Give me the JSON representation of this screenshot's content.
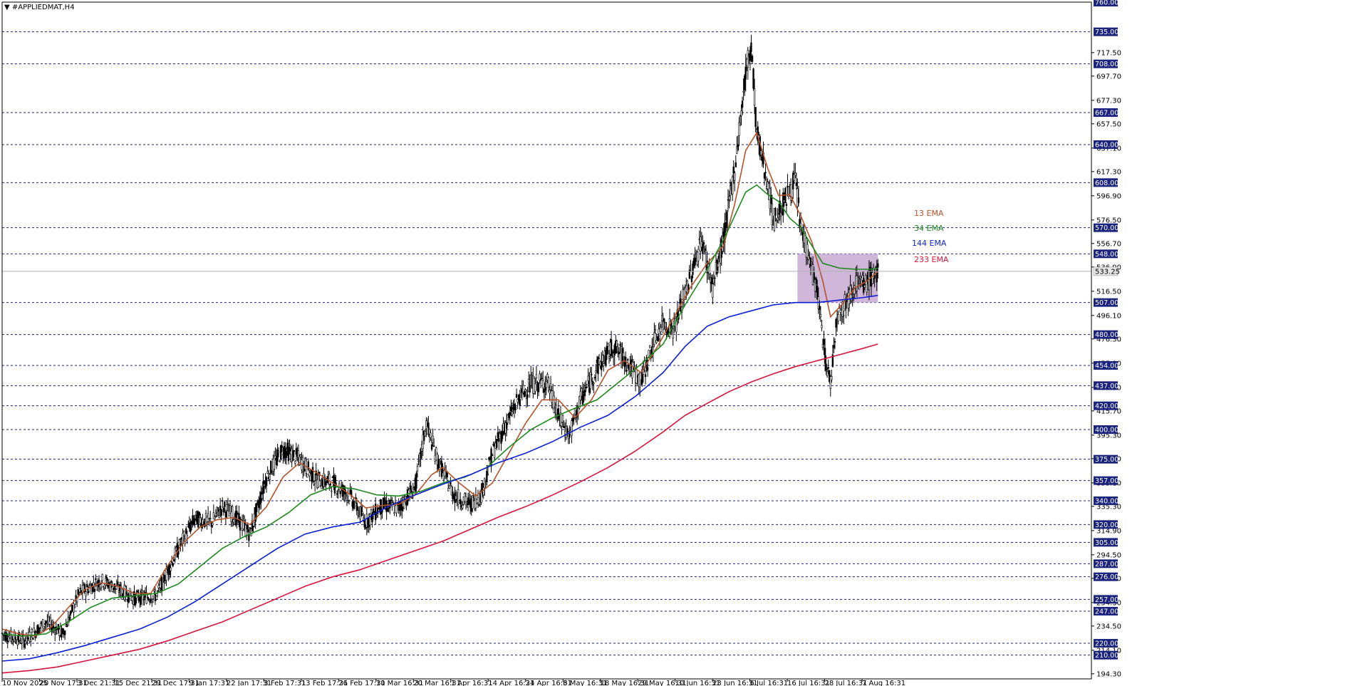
{
  "chart_data": {
    "type": "candlestick",
    "title": "▼ #APPLIEDMAT,H4",
    "symbol": "#APPLIEDMAT",
    "timeframe": "H4",
    "ylim": [
      190,
      760
    ],
    "y_ticks": [
      194.3,
      214.1,
      234.5,
      254.3,
      274.7,
      294.5,
      314.9,
      335.3,
      355.1,
      375.5,
      395.3,
      415.7,
      435.5,
      455.9,
      476.3,
      496.1,
      516.5,
      536.9,
      556.7,
      576.5,
      596.9,
      617.3,
      637.1,
      657.5,
      677.3,
      697.7,
      717.5
    ],
    "levels": [
      760.0,
      735.0,
      708.0,
      667.0,
      640.0,
      608.0,
      570.0,
      548.0,
      507.0,
      480.0,
      454.0,
      437.0,
      420.0,
      400.0,
      375.0,
      357.0,
      340.0,
      320.0,
      305.0,
      287.0,
      276.0,
      257.0,
      247.0,
      220.0,
      210.0
    ],
    "current_price": 533.25,
    "x_labels": [
      "10 Nov 2025",
      "20 Nov 17:31",
      "3 Dec 21:31",
      "15 Dec 21:31",
      "29 Dec 17:31",
      "9 Jan 17:31",
      "22 Jan 17:31",
      "3 Feb 17:31",
      "13 Feb 17:31",
      "26 Feb 17:31",
      "10 Mar 16:31",
      "20 Mar 16:31",
      "1 Apr 16:31",
      "14 Apr 16:31",
      "24 Apr 16:31",
      "6 May 16:31",
      "18 May 16:31",
      "29 May 16:31",
      "10 Jun 16:31",
      "23 Jun 16:31",
      "6 Jul 16:31",
      "16 Jul 16:31",
      "28 Jul 16:31",
      "7 Aug 16:31"
    ],
    "close_path": [
      [
        0,
        228
      ],
      [
        20,
        222
      ],
      [
        40,
        238
      ],
      [
        55,
        228
      ],
      [
        70,
        262
      ],
      [
        90,
        273
      ],
      [
        105,
        266
      ],
      [
        120,
        258
      ],
      [
        140,
        260
      ],
      [
        160,
        300
      ],
      [
        175,
        325
      ],
      [
        190,
        322
      ],
      [
        200,
        335
      ],
      [
        210,
        328
      ],
      [
        225,
        312
      ],
      [
        240,
        360
      ],
      [
        255,
        384
      ],
      [
        270,
        375
      ],
      [
        285,
        358
      ],
      [
        300,
        355
      ],
      [
        315,
        345
      ],
      [
        330,
        322
      ],
      [
        345,
        336
      ],
      [
        360,
        334
      ],
      [
        375,
        352
      ],
      [
        385,
        405
      ],
      [
        395,
        375
      ],
      [
        410,
        345
      ],
      [
        425,
        337
      ],
      [
        435,
        345
      ],
      [
        445,
        380
      ],
      [
        455,
        400
      ],
      [
        470,
        428
      ],
      [
        480,
        438
      ],
      [
        495,
        440
      ],
      [
        505,
        410
      ],
      [
        515,
        395
      ],
      [
        525,
        425
      ],
      [
        540,
        452
      ],
      [
        555,
        470
      ],
      [
        565,
        460
      ],
      [
        580,
        440
      ],
      [
        590,
        470
      ],
      [
        600,
        490
      ],
      [
        610,
        485
      ],
      [
        625,
        530
      ],
      [
        635,
        560
      ],
      [
        645,
        520
      ],
      [
        655,
        560
      ],
      [
        665,
        620
      ],
      [
        675,
        700
      ],
      [
        680,
        725
      ],
      [
        685,
        650
      ],
      [
        695,
        608
      ],
      [
        700,
        575
      ],
      [
        710,
        592
      ],
      [
        720,
        610
      ],
      [
        725,
        570
      ],
      [
        732,
        548
      ],
      [
        740,
        515
      ],
      [
        748,
        455
      ],
      [
        752,
        440
      ],
      [
        758,
        498
      ],
      [
        765,
        505
      ],
      [
        775,
        525
      ],
      [
        782,
        520
      ],
      [
        790,
        530
      ],
      [
        795,
        533
      ]
    ],
    "ema_series": [
      {
        "name": "13 EMA",
        "color": "#b5532a",
        "path": [
          [
            0,
            232
          ],
          [
            15,
            228
          ],
          [
            30,
            226
          ],
          [
            45,
            234
          ],
          [
            60,
            250
          ],
          [
            75,
            265
          ],
          [
            90,
            271
          ],
          [
            105,
            268
          ],
          [
            120,
            262
          ],
          [
            135,
            262
          ],
          [
            150,
            285
          ],
          [
            165,
            305
          ],
          [
            180,
            318
          ],
          [
            195,
            324
          ],
          [
            210,
            326
          ],
          [
            225,
            320
          ],
          [
            240,
            335
          ],
          [
            255,
            360
          ],
          [
            270,
            372
          ],
          [
            285,
            364
          ],
          [
            300,
            355
          ],
          [
            315,
            346
          ],
          [
            330,
            334
          ],
          [
            345,
            336
          ],
          [
            360,
            337
          ],
          [
            375,
            345
          ],
          [
            390,
            362
          ],
          [
            400,
            368
          ],
          [
            415,
            355
          ],
          [
            430,
            344
          ],
          [
            445,
            355
          ],
          [
            460,
            380
          ],
          [
            475,
            405
          ],
          [
            490,
            425
          ],
          [
            505,
            425
          ],
          [
            520,
            410
          ],
          [
            535,
            425
          ],
          [
            550,
            450
          ],
          [
            565,
            458
          ],
          [
            580,
            448
          ],
          [
            595,
            470
          ],
          [
            610,
            495
          ],
          [
            625,
            520
          ],
          [
            640,
            540
          ],
          [
            655,
            555
          ],
          [
            665,
            590
          ],
          [
            675,
            635
          ],
          [
            685,
            650
          ],
          [
            695,
            620
          ],
          [
            705,
            597
          ],
          [
            715,
            598
          ],
          [
            725,
            580
          ],
          [
            735,
            558
          ],
          [
            745,
            525
          ],
          [
            752,
            495
          ],
          [
            762,
            505
          ],
          [
            775,
            520
          ],
          [
            785,
            525
          ],
          [
            795,
            533
          ]
        ]
      },
      {
        "name": "34 EMA",
        "color": "#1e8a1e",
        "path": [
          [
            0,
            228
          ],
          [
            20,
            226
          ],
          [
            40,
            228
          ],
          [
            60,
            238
          ],
          [
            80,
            250
          ],
          [
            100,
            258
          ],
          [
            120,
            260
          ],
          [
            140,
            262
          ],
          [
            160,
            270
          ],
          [
            180,
            285
          ],
          [
            200,
            300
          ],
          [
            220,
            310
          ],
          [
            240,
            318
          ],
          [
            260,
            330
          ],
          [
            280,
            345
          ],
          [
            300,
            352
          ],
          [
            320,
            350
          ],
          [
            340,
            345
          ],
          [
            360,
            344
          ],
          [
            380,
            348
          ],
          [
            400,
            355
          ],
          [
            420,
            360
          ],
          [
            440,
            368
          ],
          [
            460,
            385
          ],
          [
            480,
            400
          ],
          [
            500,
            410
          ],
          [
            520,
            418
          ],
          [
            540,
            425
          ],
          [
            560,
            440
          ],
          [
            580,
            455
          ],
          [
            600,
            472
          ],
          [
            620,
            505
          ],
          [
            640,
            535
          ],
          [
            655,
            560
          ],
          [
            665,
            580
          ],
          [
            675,
            600
          ],
          [
            685,
            606
          ],
          [
            695,
            598
          ],
          [
            705,
            592
          ],
          [
            715,
            578
          ],
          [
            725,
            570
          ],
          [
            735,
            555
          ],
          [
            745,
            540
          ],
          [
            760,
            536
          ],
          [
            775,
            535
          ],
          [
            790,
            535
          ],
          [
            795,
            536
          ]
        ]
      },
      {
        "name": "144 EMA",
        "color": "#0a1fd4",
        "path": [
          [
            0,
            205
          ],
          [
            25,
            207
          ],
          [
            50,
            212
          ],
          [
            75,
            218
          ],
          [
            100,
            225
          ],
          [
            125,
            232
          ],
          [
            150,
            242
          ],
          [
            175,
            255
          ],
          [
            200,
            270
          ],
          [
            225,
            285
          ],
          [
            250,
            300
          ],
          [
            275,
            312
          ],
          [
            300,
            318
          ],
          [
            325,
            322
          ],
          [
            350,
            335
          ],
          [
            375,
            345
          ],
          [
            400,
            354
          ],
          [
            425,
            362
          ],
          [
            450,
            372
          ],
          [
            475,
            380
          ],
          [
            500,
            390
          ],
          [
            525,
            402
          ],
          [
            550,
            412
          ],
          [
            575,
            428
          ],
          [
            600,
            448
          ],
          [
            620,
            470
          ],
          [
            640,
            487
          ],
          [
            660,
            495
          ],
          [
            680,
            500
          ],
          [
            700,
            505
          ],
          [
            720,
            507
          ],
          [
            740,
            507
          ],
          [
            760,
            509
          ],
          [
            780,
            511
          ],
          [
            795,
            513
          ]
        ]
      },
      {
        "name": "233 EMA",
        "color": "#d7143c",
        "path": [
          [
            0,
            195
          ],
          [
            25,
            197
          ],
          [
            50,
            200
          ],
          [
            75,
            205
          ],
          [
            100,
            210
          ],
          [
            125,
            215
          ],
          [
            150,
            222
          ],
          [
            175,
            230
          ],
          [
            200,
            238
          ],
          [
            225,
            248
          ],
          [
            250,
            258
          ],
          [
            275,
            268
          ],
          [
            300,
            276
          ],
          [
            325,
            282
          ],
          [
            350,
            290
          ],
          [
            375,
            298
          ],
          [
            400,
            306
          ],
          [
            425,
            316
          ],
          [
            450,
            326
          ],
          [
            475,
            335
          ],
          [
            500,
            345
          ],
          [
            525,
            356
          ],
          [
            550,
            368
          ],
          [
            575,
            382
          ],
          [
            600,
            398
          ],
          [
            620,
            412
          ],
          [
            640,
            422
          ],
          [
            660,
            432
          ],
          [
            680,
            440
          ],
          [
            700,
            447
          ],
          [
            720,
            453
          ],
          [
            740,
            458
          ],
          [
            760,
            463
          ],
          [
            780,
            468
          ],
          [
            795,
            472
          ]
        ]
      }
    ]
  },
  "labels": {
    "ema13": "13 EMA",
    "ema34": "34 EMA",
    "ema144": "144 EMA",
    "ema233": "233 EMA"
  },
  "colors": {
    "level_box": "#1a237e",
    "current_box": "#e6e6e6",
    "zone_fill": "#c8a9d2",
    "candle_up": "#ffffff",
    "candle_down": "#000000"
  }
}
